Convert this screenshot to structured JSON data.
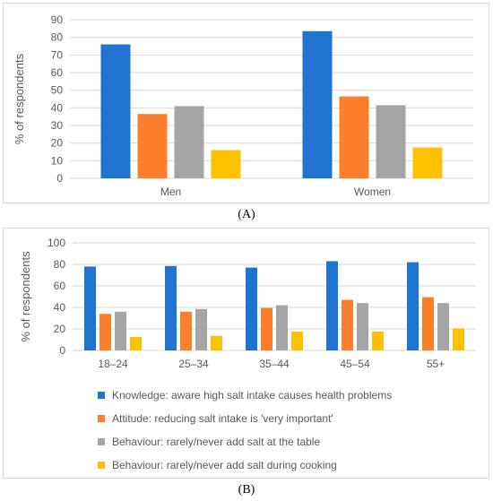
{
  "chart_data": [
    {
      "type": "bar",
      "title": "",
      "xlabel": "",
      "ylabel": "% of respondents",
      "ylim": [
        0,
        90
      ],
      "yticks": [
        0,
        10,
        20,
        30,
        40,
        50,
        60,
        70,
        80,
        90
      ],
      "grid": true,
      "categories": [
        "Men",
        "Women"
      ],
      "series": [
        {
          "name": "Knowledge: aware high salt intake causes health problems",
          "color": "#1f74d0",
          "values": [
            76,
            83.5
          ]
        },
        {
          "name": "Attitude: reducing salt intake is 'very important'",
          "color": "#fd7f2b",
          "values": [
            36.5,
            46.5
          ]
        },
        {
          "name": "Behaviour: rarely/never add salt at the table",
          "color": "#a5a5a5",
          "values": [
            41,
            41.5
          ]
        },
        {
          "name": "Behaviour: rarely/never add salt during cooking",
          "color": "#ffc000",
          "values": [
            16,
            17.5
          ]
        }
      ],
      "legend": "none"
    },
    {
      "type": "bar",
      "title": "",
      "xlabel": "",
      "ylabel": "% of respondents",
      "ylim": [
        0,
        100
      ],
      "yticks": [
        0,
        20,
        40,
        60,
        80,
        100
      ],
      "grid": true,
      "categories": [
        "18–24",
        "25–34",
        "35–44",
        "45–54",
        "55+"
      ],
      "series": [
        {
          "name": "Knowledge: aware high salt intake causes health problems",
          "color": "#1f74d0",
          "values": [
            78,
            78.5,
            77,
            83,
            82
          ]
        },
        {
          "name": "Attitude: reducing salt intake is 'very important'",
          "color": "#fd7f2b",
          "values": [
            34,
            36,
            39.5,
            47,
            49.5
          ]
        },
        {
          "name": "Behaviour: rarely/never add salt at the table",
          "color": "#a5a5a5",
          "values": [
            36,
            38.5,
            42,
            44,
            44
          ]
        },
        {
          "name": "Behaviour: rarely/never add salt during cooking",
          "color": "#ffc000",
          "values": [
            12.5,
            13.5,
            17.5,
            17.5,
            20.5
          ]
        }
      ],
      "legend": "bottom"
    }
  ],
  "captions": {
    "a": "(A)",
    "b": "(B)"
  },
  "legend": {
    "items": [
      {
        "label": "Knowledge: aware high salt intake causes health problems",
        "color": "#1f74d0"
      },
      {
        "label": "Attitude: reducing salt intake is 'very important'",
        "color": "#fd7f2b"
      },
      {
        "label": "Behaviour: rarely/never add salt at the table",
        "color": "#a5a5a5"
      },
      {
        "label": "Behaviour: rarely/never add salt during cooking",
        "color": "#ffc000"
      }
    ]
  }
}
